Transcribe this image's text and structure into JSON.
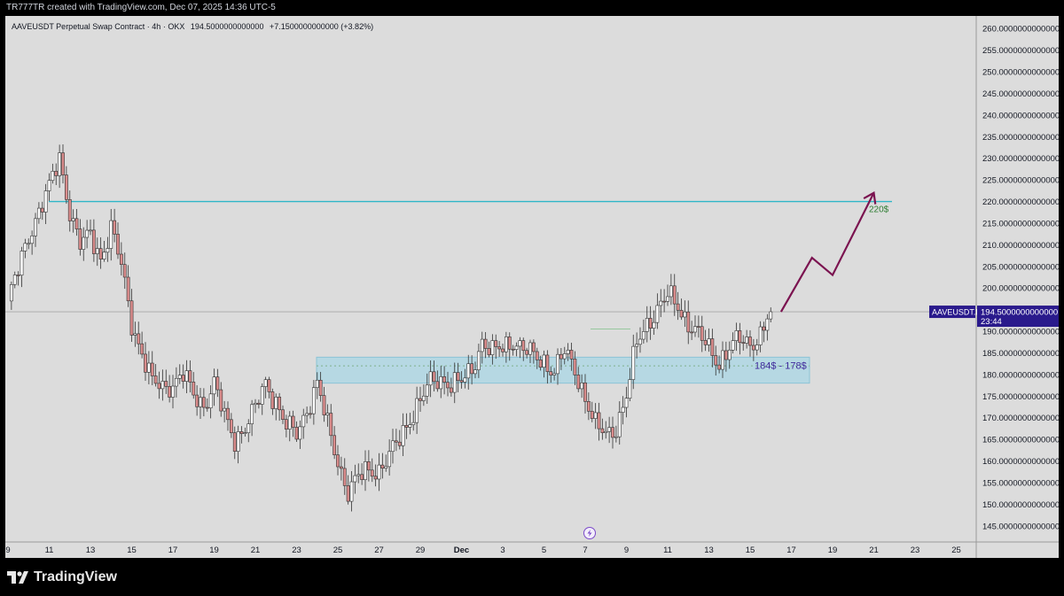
{
  "header": {
    "attribution": "TR777TR created with TradingView.com, Dec 07, 2025 14:36 UTC-5"
  },
  "symbol_info": {
    "name": "AAVEUSDT Perpetual Swap Contract",
    "interval": "4h",
    "exchange": "OKX",
    "price": "194.5000000000000",
    "change": "+7.1500000000000 (+3.82%)"
  },
  "price_badge": {
    "ticker": "AAVEUSDT.P",
    "price": "194.5000000000000",
    "countdown": "23:44"
  },
  "annotations": {
    "resistance_label": "220$",
    "zone_label": "184$ - 178$"
  },
  "footer": {
    "brand": "TradingView"
  },
  "colors": {
    "background": "#dcdcdc",
    "up_candle": "#ffffff",
    "down_candle": "#d98b8b",
    "resistance_line": "#2fb6c8",
    "zone_fill": "#a9d7e6",
    "arrow": "#7b1350",
    "badge": "#2a1a8c",
    "resistance_label": "#2e7d32",
    "zone_label": "#3f2a9c"
  },
  "chart_data": {
    "type": "candlestick",
    "title": "AAVEUSDT Perpetual Swap Contract · 4h · OKX",
    "y_axis": {
      "ticks": [
        "260.0000000000000",
        "255.0000000000000",
        "250.0000000000000",
        "245.0000000000000",
        "240.0000000000000",
        "235.0000000000000",
        "230.0000000000000",
        "225.0000000000000",
        "220.0000000000000",
        "215.0000000000000",
        "210.0000000000000",
        "205.0000000000000",
        "200.0000000000000",
        "195.0000000000000",
        "190.0000000000000",
        "185.0000000000000",
        "180.0000000000000",
        "175.0000000000000",
        "170.0000000000000",
        "165.0000000000000",
        "160.0000000000000",
        "155.0000000000000",
        "150.0000000000000",
        "145.0000000000000"
      ],
      "range": [
        142.5,
        262.5
      ],
      "position": "right"
    },
    "x_axis": {
      "ticks": [
        "9",
        "11",
        "13",
        "15",
        "17",
        "19",
        "21",
        "23",
        "25",
        "27",
        "29",
        "Dec",
        "3",
        "5",
        "7",
        "9",
        "11",
        "13",
        "15",
        "17",
        "19",
        "21",
        "23",
        "25"
      ],
      "bold_ticks": [
        "Dec"
      ]
    },
    "series": [
      {
        "close_points": [
          [
            0,
            197
          ],
          [
            0.5,
            204
          ],
          [
            1,
            212
          ],
          [
            1.5,
            218
          ],
          [
            2,
            223
          ],
          [
            2.5,
            230
          ],
          [
            3,
            218
          ],
          [
            3.5,
            210
          ],
          [
            4,
            212
          ],
          [
            4.5,
            207
          ],
          [
            5,
            214
          ],
          [
            5.5,
            205
          ],
          [
            6,
            192
          ],
          [
            6.5,
            185
          ],
          [
            7,
            178
          ],
          [
            7.5,
            177
          ],
          [
            8,
            178
          ],
          [
            8.5,
            180
          ],
          [
            9,
            175
          ],
          [
            9.5,
            173
          ],
          [
            10,
            178
          ],
          [
            10.5,
            170
          ],
          [
            11,
            165
          ],
          [
            11.5,
            168
          ],
          [
            12,
            172
          ],
          [
            12.5,
            178
          ],
          [
            13,
            174
          ],
          [
            13.5,
            168
          ],
          [
            14,
            166
          ],
          [
            14.5,
            172
          ],
          [
            15,
            178
          ],
          [
            15.5,
            168
          ],
          [
            16,
            160
          ],
          [
            16.5,
            153
          ],
          [
            17,
            156
          ],
          [
            17.5,
            158
          ],
          [
            18,
            158
          ],
          [
            18.5,
            161
          ],
          [
            19,
            165
          ],
          [
            19.5,
            170
          ],
          [
            20,
            174
          ],
          [
            20.5,
            178
          ],
          [
            21,
            179
          ],
          [
            21.5,
            178
          ],
          [
            22,
            178
          ],
          [
            22.5,
            181
          ],
          [
            23,
            188
          ],
          [
            23.5,
            185
          ],
          [
            24,
            186
          ],
          [
            24.5,
            188
          ],
          [
            25,
            186
          ],
          [
            25.5,
            184
          ],
          [
            26,
            183
          ],
          [
            26.5,
            181
          ],
          [
            27,
            185
          ],
          [
            27.5,
            181
          ],
          [
            28,
            175
          ],
          [
            28.5,
            168
          ],
          [
            29,
            166
          ],
          [
            29.5,
            168
          ],
          [
            30,
            175
          ],
          [
            30.5,
            187
          ],
          [
            31,
            192
          ],
          [
            31.5,
            195
          ],
          [
            32,
            198
          ],
          [
            32.5,
            196
          ],
          [
            33,
            192
          ],
          [
            33.5,
            189
          ],
          [
            34,
            186
          ],
          [
            34.5,
            183
          ],
          [
            35,
            186
          ],
          [
            35.5,
            188
          ],
          [
            36,
            187.35
          ],
          [
            36.5,
            189
          ],
          [
            37,
            194.5
          ]
        ]
      }
    ],
    "horizontal_lines": [
      {
        "value": 220,
        "label": "220$"
      }
    ],
    "zones": [
      {
        "from": 178,
        "to": 184,
        "label": "184$ - 178$"
      }
    ],
    "projection_path": [
      [
        37.5,
        194.5
      ],
      [
        39,
        207
      ],
      [
        40,
        203
      ],
      [
        42,
        222
      ]
    ],
    "last_price": 194.5
  }
}
